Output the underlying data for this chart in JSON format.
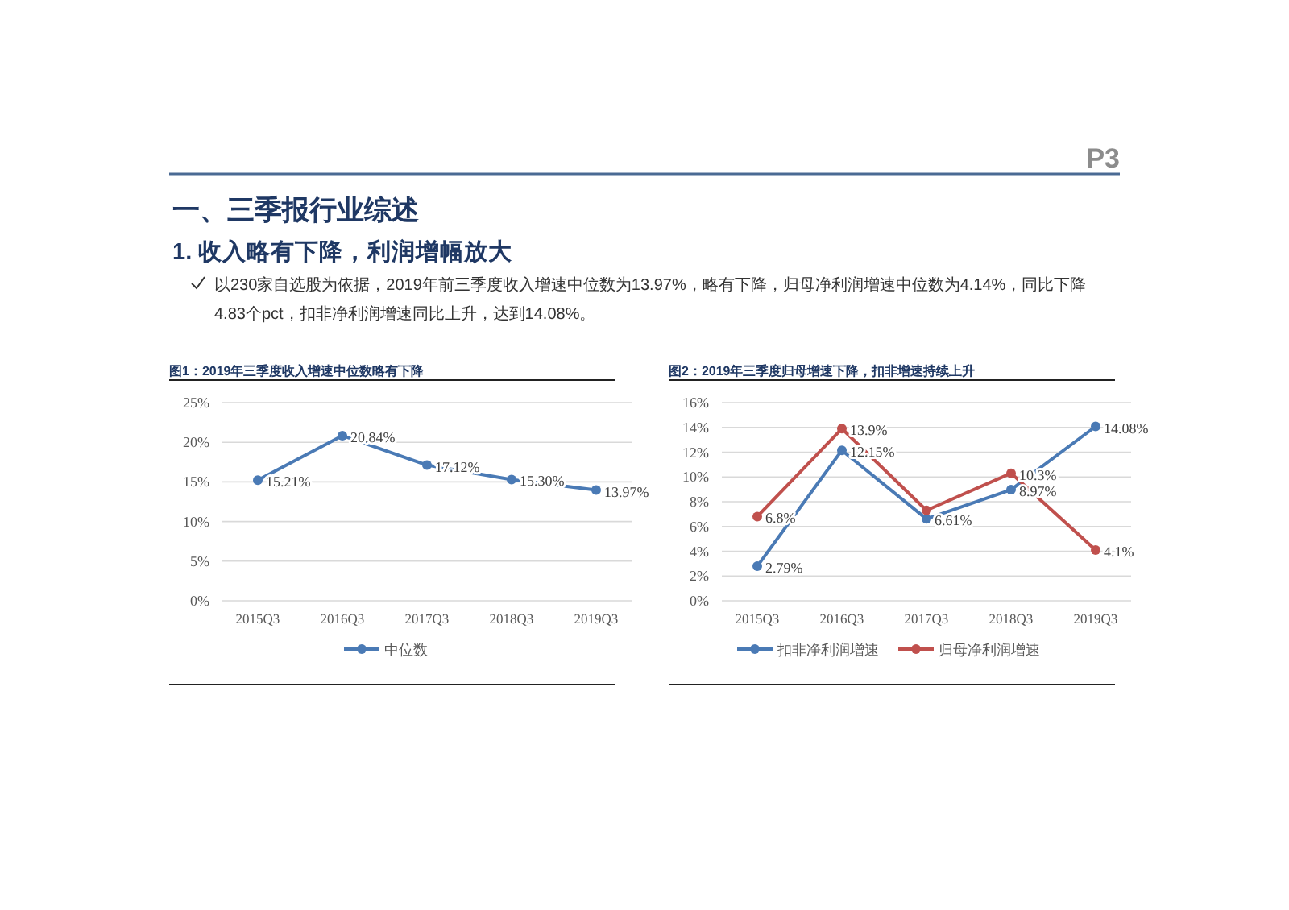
{
  "chart_data": [
    {
      "type": "other",
      "title": "一、三季报行业综述",
      "subtitle": "1. 收入略有下降，利润增幅放大",
      "annotations": [
        "以230家自选股为依据，2019年前三季度收入增速中位数为13.97%，略有下降，归母净利润增速中位数为4.14%，同比下降4.83个pct，扣非净利润增速同比上升，达到14.08%。",
        "P3"
      ]
    },
    {
      "type": "line",
      "title": "图1：2019年三季度收入增速中位数略有下降",
      "categories": [
        "2015Q3",
        "2016Q3",
        "2017Q3",
        "2018Q3",
        "2019Q3"
      ],
      "series": [
        {
          "name": "中位数",
          "color": "#4a7ab5",
          "values": [
            15.21,
            20.84,
            17.12,
            15.3,
            13.97
          ],
          "value_labels": [
            "15.21%",
            "20.84%",
            "17.12%",
            "15.30%",
            "13.97%"
          ]
        }
      ],
      "ylim": [
        0,
        25
      ],
      "yticks": [
        {
          "value": 0,
          "label": "0%"
        },
        {
          "value": 5,
          "label": "5%"
        },
        {
          "value": 10,
          "label": "10%"
        },
        {
          "value": 15,
          "label": "15%"
        },
        {
          "value": 20,
          "label": "20%"
        },
        {
          "value": 25,
          "label": "25%"
        }
      ],
      "grid": "y",
      "legend": "bottom",
      "marker": "circle",
      "line_style": "solid"
    },
    {
      "type": "line",
      "title": "图2：2019年三季度归母增速下降，扣非增速持续上升",
      "categories": [
        "2015Q3",
        "2016Q3",
        "2017Q3",
        "2018Q3",
        "2019Q3"
      ],
      "series": [
        {
          "name": "扣非净利润增速",
          "color": "#4a7ab5",
          "values": [
            2.79,
            12.15,
            6.61,
            8.97,
            14.08
          ],
          "value_labels": [
            "2.79%",
            "12.15%",
            "6.61%",
            "8.97%",
            "14.08%"
          ]
        },
        {
          "name": "归母净利润增速",
          "color": "#c0504d",
          "values": [
            6.8,
            13.9,
            7.3,
            10.3,
            4.1
          ],
          "value_labels": [
            "6.8%",
            "13.9%",
            null,
            "10.3%",
            "4.1%"
          ]
        }
      ],
      "ylim": [
        0,
        16
      ],
      "yticks": [
        {
          "value": 0,
          "label": "0%"
        },
        {
          "value": 2,
          "label": "2%"
        },
        {
          "value": 4,
          "label": "4%"
        },
        {
          "value": 6,
          "label": "6%"
        },
        {
          "value": 8,
          "label": "8%"
        },
        {
          "value": 10,
          "label": "10%"
        },
        {
          "value": 12,
          "label": "12%"
        },
        {
          "value": 14,
          "label": "14%"
        },
        {
          "value": 16,
          "label": "16%"
        }
      ],
      "grid": "y",
      "legend": "bottom",
      "marker": "circle",
      "line_style": "solid"
    }
  ]
}
